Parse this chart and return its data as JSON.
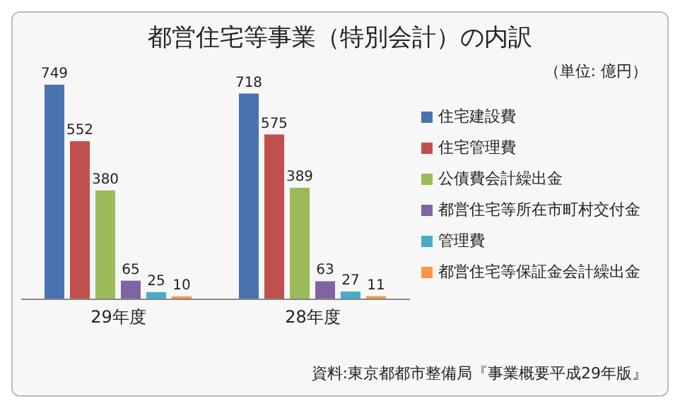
{
  "chart_data": {
    "type": "bar",
    "title": "都営住宅等事業（特別会計）の内訳",
    "subtitle": "（単位: 億円）",
    "annotations": [
      "資料:東京都都市整備局『事業概要平成29年版』"
    ],
    "categories": [
      "29年度",
      "28年度"
    ],
    "series": [
      {
        "name": "住宅建設費",
        "color": "#4a72b0",
        "values": [
          749,
          718
        ]
      },
      {
        "name": "住宅管理費",
        "color": "#c0504d",
        "values": [
          552,
          575
        ]
      },
      {
        "name": "公債費会計繰出金",
        "color": "#9bbb59",
        "values": [
          380,
          389
        ]
      },
      {
        "name": "都営住宅等所在市町村交付金",
        "color": "#8064a2",
        "values": [
          65,
          63
        ]
      },
      {
        "name": "管理費",
        "color": "#4bacc6",
        "values": [
          25,
          27
        ]
      },
      {
        "name": "都営住宅等保証金会計繰出金",
        "color": "#f79646",
        "values": [
          10,
          11
        ]
      }
    ],
    "data_labels": true,
    "legend": "right",
    "grid": false
  }
}
